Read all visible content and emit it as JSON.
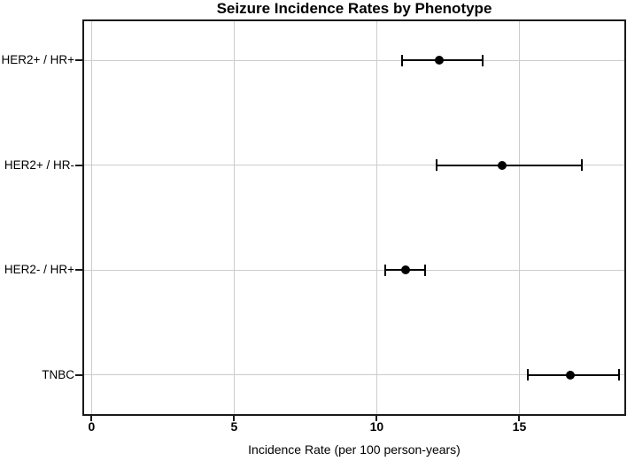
{
  "chart_data": {
    "type": "scatter",
    "subtype": "horizontal-dot-plot-with-error-bars",
    "title": "Seizure Incidence Rates by Phenotype",
    "xlabel": "Incidence Rate (per 100 person-years)",
    "ylabel": "",
    "categories": [
      "HER2+ / HR+",
      "HER2+ / HR-",
      "HER2- / HR+",
      "TNBC"
    ],
    "series": [
      {
        "name": "Incidence rate",
        "values": [
          12.2,
          14.4,
          11.0,
          16.8
        ],
        "ci_low": [
          10.9,
          12.1,
          10.3,
          15.3
        ],
        "ci_high": [
          13.7,
          17.2,
          11.7,
          18.5
        ]
      }
    ],
    "xticks": [
      0,
      5,
      10,
      15
    ],
    "xtick_labels": [
      "0",
      "5",
      "10",
      "15"
    ],
    "xlim": [
      -0.26,
      18.68
    ],
    "grid": true,
    "legend": "none",
    "colors": {
      "marker": "#000000",
      "error_bar": "#000000",
      "gridline": "#cccccc",
      "axis_border": "#1a1a1a",
      "background": "#ffffff",
      "text": "#000000"
    }
  }
}
